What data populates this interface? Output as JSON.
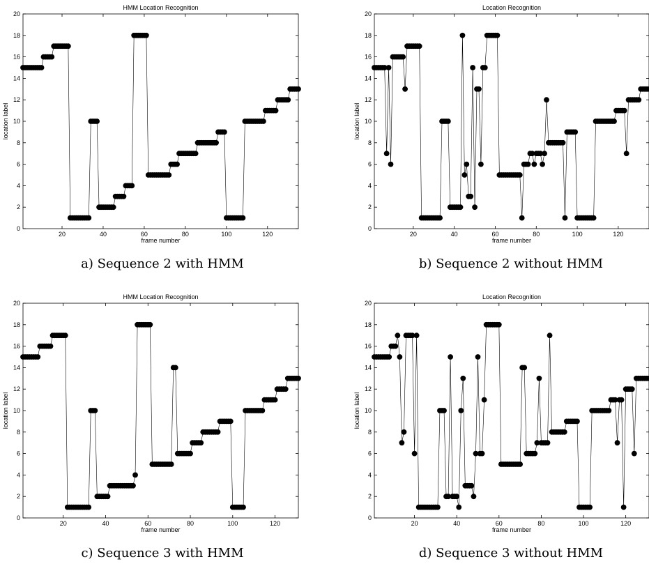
{
  "chart_data": [
    {
      "type": "line",
      "title": "HMM Location Recognition",
      "xlabel": "frame number",
      "ylabel": "location label",
      "xlim": [
        1,
        135
      ],
      "ylim": [
        0,
        20
      ],
      "xticks": [
        20,
        40,
        60,
        80,
        100,
        120
      ],
      "yticks": [
        0,
        2,
        4,
        6,
        8,
        10,
        12,
        14,
        16,
        18,
        20
      ],
      "caption": "a) Sequence 2 with HMM",
      "x": [
        1,
        2,
        3,
        4,
        5,
        6,
        7,
        8,
        9,
        10,
        11,
        12,
        13,
        14,
        15,
        16,
        17,
        18,
        19,
        20,
        21,
        22,
        23,
        24,
        25,
        26,
        27,
        28,
        29,
        30,
        31,
        32,
        33,
        34,
        35,
        36,
        37,
        38,
        39,
        40,
        41,
        42,
        43,
        44,
        45,
        46,
        47,
        48,
        49,
        50,
        51,
        52,
        53,
        54,
        55,
        56,
        57,
        58,
        59,
        60,
        61,
        62,
        63,
        64,
        65,
        66,
        67,
        68,
        69,
        70,
        71,
        72,
        73,
        74,
        75,
        76,
        77,
        78,
        79,
        80,
        81,
        82,
        83,
        84,
        85,
        86,
        87,
        88,
        89,
        90,
        91,
        92,
        93,
        94,
        95,
        96,
        97,
        98,
        99,
        100,
        101,
        102,
        103,
        104,
        105,
        106,
        107,
        108,
        109,
        110,
        111,
        112,
        113,
        114,
        115,
        116,
        117,
        118,
        119,
        120,
        121,
        122,
        123,
        124,
        125,
        126,
        127,
        128,
        129,
        130,
        131,
        132,
        133,
        134,
        135
      ],
      "y": [
        15,
        15,
        15,
        15,
        15,
        15,
        15,
        15,
        15,
        15,
        16,
        16,
        16,
        16,
        16,
        17,
        17,
        17,
        17,
        17,
        17,
        17,
        17,
        1,
        1,
        1,
        1,
        1,
        1,
        1,
        1,
        1,
        1,
        10,
        10,
        10,
        10,
        2,
        2,
        2,
        2,
        2,
        2,
        2,
        2,
        3,
        3,
        3,
        3,
        3,
        4,
        4,
        4,
        4,
        18,
        18,
        18,
        18,
        18,
        18,
        18,
        5,
        5,
        5,
        5,
        5,
        5,
        5,
        5,
        5,
        5,
        5,
        6,
        6,
        6,
        6,
        7,
        7,
        7,
        7,
        7,
        7,
        7,
        7,
        7,
        8,
        8,
        8,
        8,
        8,
        8,
        8,
        8,
        8,
        8,
        9,
        9,
        9,
        9,
        1,
        1,
        1,
        1,
        1,
        1,
        1,
        1,
        1,
        10,
        10,
        10,
        10,
        10,
        10,
        10,
        10,
        10,
        10,
        11,
        11,
        11,
        11,
        11,
        11,
        12,
        12,
        12,
        12,
        12,
        12,
        13,
        13,
        13,
        13,
        13
      ]
    },
    {
      "type": "line",
      "title": "Location Recognition",
      "xlabel": "frame number",
      "ylabel": "location label",
      "xlim": [
        1,
        135
      ],
      "ylim": [
        0,
        20
      ],
      "xticks": [
        20,
        40,
        60,
        80,
        100,
        120
      ],
      "yticks": [
        0,
        2,
        4,
        6,
        8,
        10,
        12,
        14,
        16,
        18,
        20
      ],
      "caption": "b) Sequence 2 without HMM",
      "x": [
        1,
        2,
        3,
        4,
        5,
        6,
        7,
        8,
        9,
        10,
        11,
        12,
        13,
        14,
        15,
        16,
        17,
        18,
        19,
        20,
        21,
        22,
        23,
        24,
        25,
        26,
        27,
        28,
        29,
        30,
        31,
        32,
        33,
        34,
        35,
        36,
        37,
        38,
        39,
        40,
        41,
        42,
        43,
        44,
        45,
        46,
        47,
        48,
        49,
        50,
        51,
        52,
        53,
        54,
        55,
        56,
        57,
        58,
        59,
        60,
        61,
        62,
        63,
        64,
        65,
        66,
        67,
        68,
        69,
        70,
        71,
        72,
        73,
        74,
        75,
        76,
        77,
        78,
        79,
        80,
        81,
        82,
        83,
        84,
        85,
        86,
        87,
        88,
        89,
        90,
        91,
        92,
        93,
        94,
        95,
        96,
        97,
        98,
        99,
        100,
        101,
        102,
        103,
        104,
        105,
        106,
        107,
        108,
        109,
        110,
        111,
        112,
        113,
        114,
        115,
        116,
        117,
        118,
        119,
        120,
        121,
        122,
        123,
        124,
        125,
        126,
        127,
        128,
        129,
        130,
        131,
        132,
        133,
        134,
        135
      ],
      "y": [
        15,
        15,
        15,
        15,
        15,
        15,
        7,
        15,
        6,
        16,
        16,
        16,
        16,
        16,
        16,
        13,
        17,
        17,
        17,
        17,
        17,
        17,
        17,
        1,
        1,
        1,
        1,
        1,
        1,
        1,
        1,
        1,
        1,
        10,
        10,
        10,
        10,
        2,
        2,
        2,
        2,
        2,
        2,
        18,
        5,
        6,
        3,
        3,
        15,
        2,
        13,
        13,
        6,
        15,
        15,
        18,
        18,
        18,
        18,
        18,
        18,
        5,
        5,
        5,
        5,
        5,
        5,
        5,
        5,
        5,
        5,
        5,
        1,
        6,
        6,
        6,
        7,
        7,
        6,
        7,
        7,
        7,
        6,
        7,
        12,
        8,
        8,
        8,
        8,
        8,
        8,
        8,
        8,
        1,
        9,
        9,
        9,
        9,
        9,
        1,
        1,
        1,
        1,
        1,
        1,
        1,
        1,
        1,
        10,
        10,
        10,
        10,
        10,
        10,
        10,
        10,
        10,
        10,
        11,
        11,
        11,
        11,
        11,
        7,
        12,
        12,
        12,
        12,
        12,
        12,
        13,
        13,
        13,
        13,
        13
      ]
    },
    {
      "type": "line",
      "title": "HMM Location Recognition",
      "xlabel": "frame number",
      "ylabel": "location label",
      "xlim": [
        1,
        131
      ],
      "ylim": [
        0,
        20
      ],
      "xticks": [
        20,
        40,
        60,
        80,
        100,
        120
      ],
      "yticks": [
        0,
        2,
        4,
        6,
        8,
        10,
        12,
        14,
        16,
        18,
        20
      ],
      "caption": "c) Sequence 3 with HMM",
      "x": [
        1,
        2,
        3,
        4,
        5,
        6,
        7,
        8,
        9,
        10,
        11,
        12,
        13,
        14,
        15,
        16,
        17,
        18,
        19,
        20,
        21,
        22,
        23,
        24,
        25,
        26,
        27,
        28,
        29,
        30,
        31,
        32,
        33,
        34,
        35,
        36,
        37,
        38,
        39,
        40,
        41,
        42,
        43,
        44,
        45,
        46,
        47,
        48,
        49,
        50,
        51,
        52,
        53,
        54,
        55,
        56,
        57,
        58,
        59,
        60,
        61,
        62,
        63,
        64,
        65,
        66,
        67,
        68,
        69,
        70,
        71,
        72,
        73,
        74,
        75,
        76,
        77,
        78,
        79,
        80,
        81,
        82,
        83,
        84,
        85,
        86,
        87,
        88,
        89,
        90,
        91,
        92,
        93,
        94,
        95,
        96,
        97,
        98,
        99,
        100,
        101,
        102,
        103,
        104,
        105,
        106,
        107,
        108,
        109,
        110,
        111,
        112,
        113,
        114,
        115,
        116,
        117,
        118,
        119,
        120,
        121,
        122,
        123,
        124,
        125,
        126,
        127,
        128,
        129,
        130,
        131
      ],
      "y": [
        15,
        15,
        15,
        15,
        15,
        15,
        15,
        15,
        16,
        16,
        16,
        16,
        16,
        16,
        17,
        17,
        17,
        17,
        17,
        17,
        17,
        1,
        1,
        1,
        1,
        1,
        1,
        1,
        1,
        1,
        1,
        1,
        10,
        10,
        10,
        2,
        2,
        2,
        2,
        2,
        2,
        3,
        3,
        3,
        3,
        3,
        3,
        3,
        3,
        3,
        3,
        3,
        3,
        4,
        18,
        18,
        18,
        18,
        18,
        18,
        18,
        5,
        5,
        5,
        5,
        5,
        5,
        5,
        5,
        5,
        5,
        14,
        14,
        6,
        6,
        6,
        6,
        6,
        6,
        6,
        7,
        7,
        7,
        7,
        7,
        8,
        8,
        8,
        8,
        8,
        8,
        8,
        8,
        9,
        9,
        9,
        9,
        9,
        9,
        1,
        1,
        1,
        1,
        1,
        1,
        10,
        10,
        10,
        10,
        10,
        10,
        10,
        10,
        10,
        11,
        11,
        11,
        11,
        11,
        11,
        12,
        12,
        12,
        12,
        12,
        13,
        13,
        13,
        13,
        13,
        13
      ]
    },
    {
      "type": "line",
      "title": "Location Recognition",
      "xlabel": "frame number",
      "ylabel": "location label",
      "xlim": [
        1,
        131
      ],
      "ylim": [
        0,
        20
      ],
      "xticks": [
        20,
        40,
        60,
        80,
        100,
        120
      ],
      "yticks": [
        0,
        2,
        4,
        6,
        8,
        10,
        12,
        14,
        16,
        18,
        20
      ],
      "caption": "d) Sequence 3 without HMM",
      "x": [
        1,
        2,
        3,
        4,
        5,
        6,
        7,
        8,
        9,
        10,
        11,
        12,
        13,
        14,
        15,
        16,
        17,
        18,
        19,
        20,
        21,
        22,
        23,
        24,
        25,
        26,
        27,
        28,
        29,
        30,
        31,
        32,
        33,
        34,
        35,
        36,
        37,
        38,
        39,
        40,
        41,
        42,
        43,
        44,
        45,
        46,
        47,
        48,
        49,
        50,
        51,
        52,
        53,
        54,
        55,
        56,
        57,
        58,
        59,
        60,
        61,
        62,
        63,
        64,
        65,
        66,
        67,
        68,
        69,
        70,
        71,
        72,
        73,
        74,
        75,
        76,
        77,
        78,
        79,
        80,
        81,
        82,
        83,
        84,
        85,
        86,
        87,
        88,
        89,
        90,
        91,
        92,
        93,
        94,
        95,
        96,
        97,
        98,
        99,
        100,
        101,
        102,
        103,
        104,
        105,
        106,
        107,
        108,
        109,
        110,
        111,
        112,
        113,
        114,
        115,
        116,
        117,
        118,
        119,
        120,
        121,
        122,
        123,
        124,
        125,
        126,
        127,
        128,
        129,
        130,
        131
      ],
      "y": [
        15,
        15,
        15,
        15,
        15,
        15,
        15,
        15,
        16,
        16,
        16,
        17,
        15,
        7,
        8,
        17,
        17,
        17,
        17,
        6,
        17,
        1,
        1,
        1,
        1,
        1,
        1,
        1,
        1,
        1,
        1,
        10,
        10,
        10,
        2,
        2,
        15,
        2,
        2,
        2,
        1,
        10,
        13,
        3,
        3,
        3,
        3,
        2,
        6,
        15,
        6,
        6,
        11,
        18,
        18,
        18,
        18,
        18,
        18,
        18,
        5,
        5,
        5,
        5,
        5,
        5,
        5,
        5,
        5,
        5,
        14,
        14,
        6,
        6,
        6,
        6,
        6,
        7,
        13,
        7,
        7,
        7,
        7,
        17,
        8,
        8,
        8,
        8,
        8,
        8,
        8,
        9,
        9,
        9,
        9,
        9,
        9,
        1,
        1,
        1,
        1,
        1,
        1,
        10,
        10,
        10,
        10,
        10,
        10,
        10,
        10,
        10,
        11,
        11,
        11,
        7,
        11,
        11,
        1,
        12,
        12,
        12,
        12,
        6,
        13,
        13,
        13,
        13,
        13,
        13,
        13
      ]
    }
  ]
}
